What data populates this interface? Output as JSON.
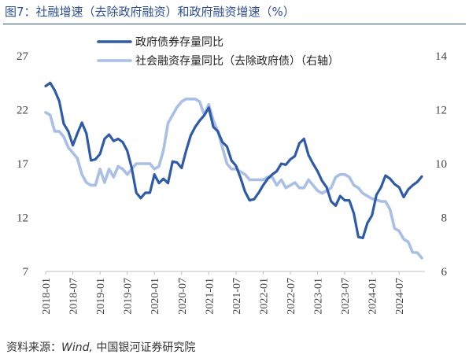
{
  "title": "图7：社融增速（去除政府融资）和政府融资增速（%）",
  "source": {
    "prefix": "资料来源：",
    "italic": "Wind,",
    "rest": " 中国银河证券研究院"
  },
  "chart_data": {
    "type": "line",
    "left_axis": {
      "min": 7,
      "max": 27,
      "ticks": [
        "27",
        "22",
        "17",
        "12",
        "7"
      ]
    },
    "right_axis": {
      "min": 6,
      "max": 14,
      "ticks": [
        "14",
        "12",
        "10",
        "8",
        "6"
      ]
    },
    "x_ticks": [
      "2018-01",
      "2018-07",
      "2019-01",
      "2019-07",
      "2020-01",
      "2020-07",
      "2021-01",
      "2021-07",
      "2022-01",
      "2022-07",
      "2023-01",
      "2023-07",
      "2024-01",
      "2024-07"
    ],
    "colors": {
      "gov": "#2e5aa8",
      "social": "#a9bfe6"
    },
    "series": [
      {
        "name": "政府债券存量同比",
        "axis": "left",
        "color": "#2e5aa8",
        "values": [
          24.2,
          24.5,
          23.8,
          22.8,
          20.7,
          20.0,
          18.7,
          19.8,
          20.8,
          19.8,
          17.3,
          17.4,
          17.9,
          19.3,
          19.7,
          19.1,
          19.3,
          19.0,
          18.2,
          16.6,
          14.3,
          13.8,
          14.3,
          14.3,
          16.0,
          15.2,
          15.6,
          15.2,
          17.2,
          17.1,
          16.6,
          18.2,
          19.6,
          20.4,
          21.0,
          21.5,
          22.2,
          20.4,
          20.0,
          19.0,
          18.6,
          17.3,
          16.8,
          15.7,
          14.4,
          13.6,
          13.7,
          14.3,
          15.0,
          15.6,
          16.0,
          16.3,
          17.0,
          16.9,
          17.4,
          17.7,
          18.9,
          19.3,
          17.8,
          17.0,
          16.3,
          15.4,
          14.8,
          13.5,
          13.1,
          14.0,
          13.6,
          13.6,
          12.4,
          10.2,
          10.1,
          11.5,
          12.2,
          14.1,
          14.8,
          15.9,
          15.6,
          15.1,
          14.8,
          13.9,
          14.6,
          15.0,
          15.3,
          15.8
        ]
      },
      {
        "name": "社会融资存量同比（去除政府债）（右轴）",
        "axis": "right",
        "color": "#a9bfe6",
        "values": [
          11.9,
          11.8,
          11.2,
          11.2,
          11.0,
          10.6,
          10.4,
          10.2,
          9.6,
          9.3,
          9.2,
          9.2,
          9.8,
          9.3,
          9.8,
          9.5,
          9.9,
          9.8,
          9.6,
          9.8,
          10.0,
          10.0,
          10.0,
          10.0,
          9.8,
          9.9,
          10.5,
          11.5,
          11.8,
          12.1,
          12.3,
          12.4,
          12.4,
          12.4,
          12.3,
          11.8,
          12.2,
          11.6,
          11.2,
          10.6,
          10.0,
          9.8,
          9.8,
          9.7,
          9.6,
          9.4,
          9.4,
          9.4,
          9.4,
          9.5,
          9.5,
          9.2,
          9.4,
          9.1,
          9.2,
          9.3,
          9.1,
          9.1,
          9.4,
          9.2,
          9.0,
          8.9,
          9.0,
          9.1,
          9.5,
          9.6,
          9.6,
          9.5,
          9.2,
          9.1,
          8.9,
          8.8,
          8.7,
          8.65,
          8.6,
          8.6,
          8.3,
          7.6,
          7.5,
          7.2,
          7.1,
          6.7,
          6.7,
          6.5
        ]
      }
    ],
    "legend_position": "top-center",
    "grid": false
  }
}
